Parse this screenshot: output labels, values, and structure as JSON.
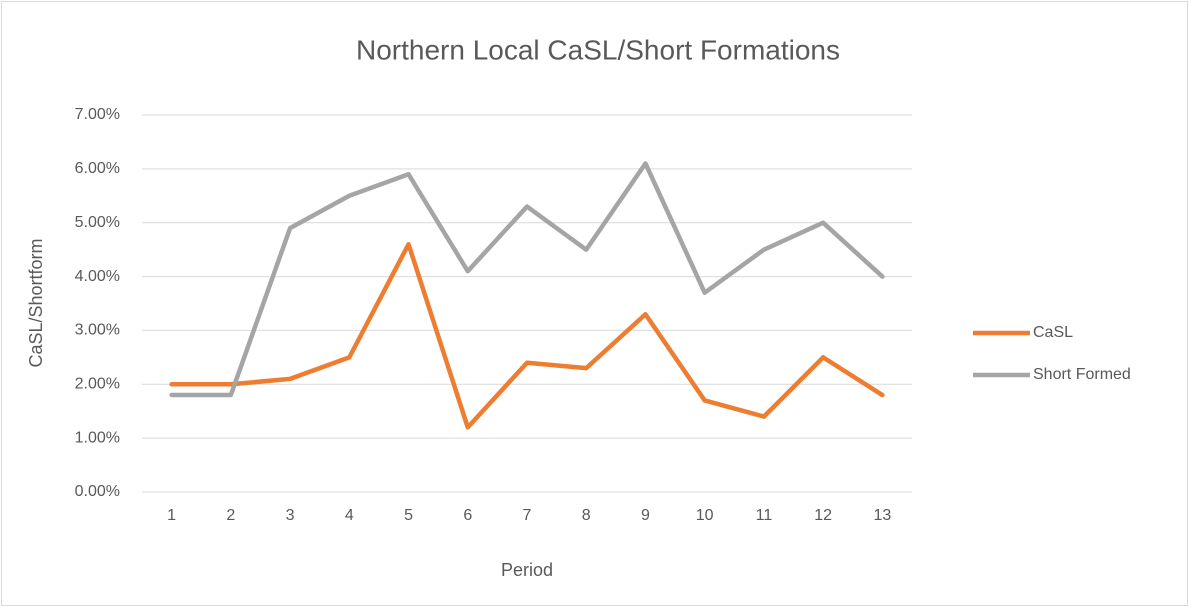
{
  "chart_data": {
    "type": "line",
    "title": "Northern Local CaSL/Short Formations",
    "x_label": "Period",
    "y_label": "CaSL/Shortform",
    "categories": [
      "1",
      "2",
      "3",
      "4",
      "5",
      "6",
      "7",
      "8",
      "9",
      "10",
      "11",
      "12",
      "13"
    ],
    "series": [
      {
        "name": "CaSL",
        "color": "#ed7d31",
        "values": [
          2.0,
          2.0,
          2.1,
          2.5,
          4.6,
          1.2,
          2.4,
          2.3,
          3.3,
          1.7,
          1.4,
          2.5,
          1.8
        ]
      },
      {
        "name": "Short Formed",
        "color": "#a5a5a5",
        "values": [
          1.8,
          1.8,
          4.9,
          5.5,
          5.9,
          4.1,
          5.3,
          4.5,
          6.1,
          3.7,
          4.5,
          5.0,
          4.0
        ]
      }
    ],
    "ylim": [
      0,
      7
    ],
    "yticks": [
      {
        "value": 0,
        "label": "0.00%"
      },
      {
        "value": 1,
        "label": "1.00%"
      },
      {
        "value": 2,
        "label": "2.00%"
      },
      {
        "value": 3,
        "label": "3.00%"
      },
      {
        "value": 4,
        "label": "4.00%"
      },
      {
        "value": 5,
        "label": "5.00%"
      },
      {
        "value": 6,
        "label": "6.00%"
      },
      {
        "value": 7,
        "label": "7.00%"
      }
    ],
    "grid": true,
    "legend": "right"
  }
}
